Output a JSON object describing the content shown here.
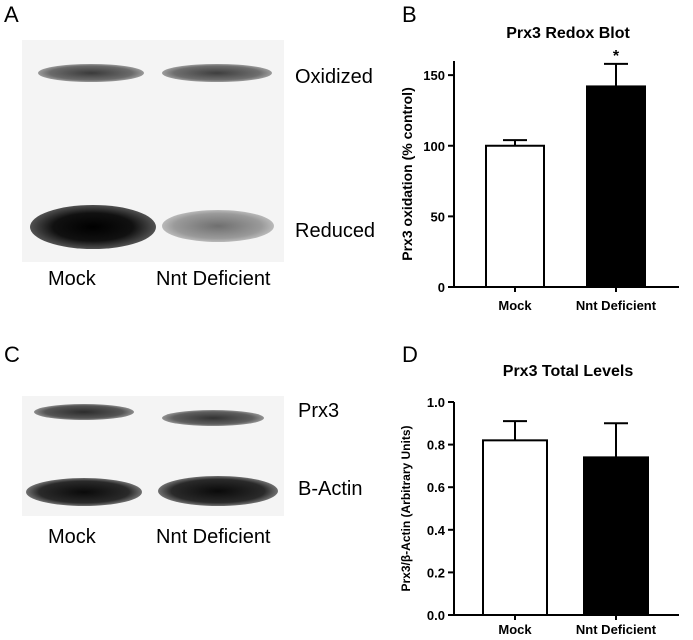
{
  "panels": {
    "a": {
      "letter": "A",
      "band_labels": [
        "Oxidized",
        "Reduced"
      ],
      "lane_labels": [
        "Mock",
        "Nnt Deficient"
      ]
    },
    "b": {
      "letter": "B"
    },
    "c": {
      "letter": "C",
      "band_labels": [
        "Prx3",
        "B-Actin"
      ],
      "lane_labels": [
        "Mock",
        "Nnt Deficient"
      ]
    },
    "d": {
      "letter": "D"
    }
  },
  "chart_data": [
    {
      "panel": "B",
      "type": "bar",
      "title": "Prx3  Redox  Blot",
      "xlabel": "",
      "ylabel": "Prx3 oxidation (% control)",
      "categories": [
        "Mock",
        "Nnt Deficient"
      ],
      "values": [
        100,
        142
      ],
      "errors": [
        4,
        16
      ],
      "bar_colors": [
        "#ffffff",
        "#000000"
      ],
      "annotations": [
        "",
        "*"
      ],
      "ylim": [
        0,
        160
      ],
      "yticks": [
        0,
        50,
        100,
        150
      ],
      "grid": false
    },
    {
      "panel": "D",
      "type": "bar",
      "title": "Prx3 Total Levels",
      "xlabel": "",
      "ylabel": "Prx3/β-Actin (Arbitrary Units)",
      "categories": [
        "Mock",
        "Nnt Deficient"
      ],
      "values": [
        0.82,
        0.74
      ],
      "errors": [
        0.09,
        0.16
      ],
      "bar_colors": [
        "#ffffff",
        "#000000"
      ],
      "annotations": [
        "",
        ""
      ],
      "ylim": [
        0,
        1.0
      ],
      "yticks": [
        "0.0",
        "0.2",
        "0.4",
        "0.6",
        "0.8",
        "1.0"
      ],
      "grid": false
    }
  ]
}
